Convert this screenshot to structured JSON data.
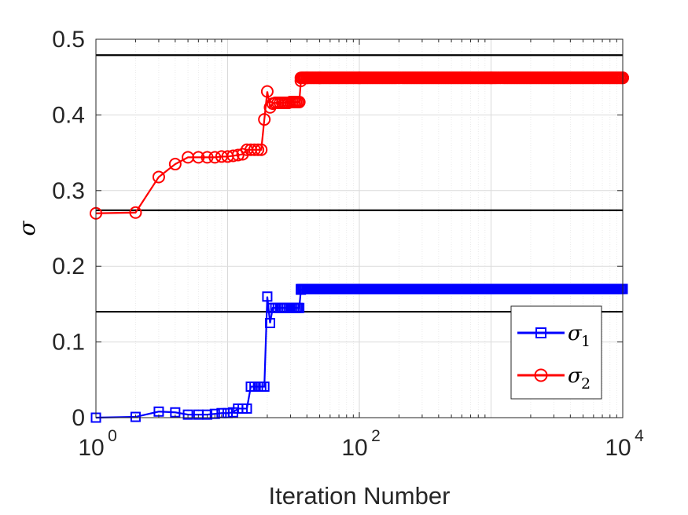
{
  "chart_data": {
    "type": "line",
    "xscale": "log",
    "xlim": [
      1,
      10000
    ],
    "ylim": [
      0,
      0.5
    ],
    "xlabel": "Iteration Number",
    "ylabel": "σ",
    "xticks": [
      {
        "value": 1,
        "base": "10",
        "exp": "0"
      },
      {
        "value": 100,
        "base": "10",
        "exp": "2"
      },
      {
        "value": 10000,
        "base": "10",
        "exp": "4"
      }
    ],
    "yticks": [
      {
        "value": 0,
        "label": "0"
      },
      {
        "value": 0.1,
        "label": "0.1"
      },
      {
        "value": 0.2,
        "label": "0.2"
      },
      {
        "value": 0.3,
        "label": "0.3"
      },
      {
        "value": 0.4,
        "label": "0.4"
      },
      {
        "value": 0.5,
        "label": "0.5"
      }
    ],
    "grid": true,
    "legend_position": "bottom-right",
    "reference_lines": [
      0.479,
      0.274,
      0.14
    ],
    "reference_color": "#000000",
    "series": [
      {
        "name": "σ",
        "name_sub": "1",
        "color": "#0000ff",
        "marker": "square",
        "x": [
          1,
          2,
          3,
          4,
          5,
          6,
          7,
          8,
          9,
          10,
          11,
          12,
          13,
          14,
          15,
          16,
          17,
          18,
          19,
          20,
          21,
          22,
          23,
          24,
          25,
          26,
          27,
          28,
          29,
          30,
          31,
          32,
          33,
          34,
          35,
          36,
          40,
          50,
          100,
          1000,
          10000
        ],
        "y": [
          0,
          0.001,
          0.008,
          0.007,
          0.004,
          0.004,
          0.004,
          0.005,
          0.006,
          0.006,
          0.007,
          0.012,
          0.012,
          0.012,
          0.041,
          0.041,
          0.041,
          0.041,
          0.041,
          0.16,
          0.125,
          0.145,
          0.145,
          0.145,
          0.145,
          0.145,
          0.145,
          0.145,
          0.145,
          0.145,
          0.145,
          0.145,
          0.145,
          0.145,
          0.145,
          0.169,
          0.17,
          0.17,
          0.17,
          0.17,
          0.17
        ]
      },
      {
        "name": "σ",
        "name_sub": "2",
        "color": "#ff0000",
        "marker": "circle",
        "x": [
          1,
          2,
          3,
          4,
          5,
          6,
          7,
          8,
          9,
          10,
          11,
          12,
          13,
          14,
          15,
          16,
          17,
          18,
          19,
          20,
          21,
          22,
          23,
          24,
          25,
          26,
          27,
          28,
          29,
          30,
          31,
          32,
          33,
          34,
          35,
          36,
          40,
          50,
          100,
          1000,
          10000
        ],
        "y": [
          0.27,
          0.271,
          0.318,
          0.335,
          0.344,
          0.344,
          0.344,
          0.344,
          0.345,
          0.345,
          0.346,
          0.347,
          0.348,
          0.354,
          0.354,
          0.354,
          0.354,
          0.354,
          0.394,
          0.431,
          0.41,
          0.415,
          0.416,
          0.416,
          0.416,
          0.416,
          0.416,
          0.416,
          0.416,
          0.417,
          0.417,
          0.417,
          0.417,
          0.417,
          0.417,
          0.445,
          0.449,
          0.449,
          0.449,
          0.449,
          0.449
        ]
      }
    ]
  }
}
